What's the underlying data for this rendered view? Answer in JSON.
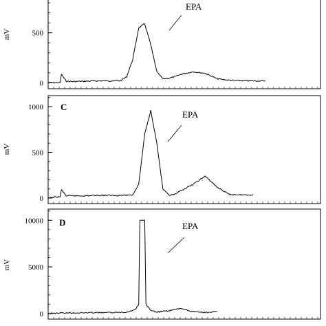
{
  "chart_data": [
    {
      "type": "line",
      "panel_label": "",
      "ylabel": "mV",
      "yticks": [
        0,
        500
      ],
      "ylim": [
        -60,
        870
      ],
      "x": [
        0,
        0.5,
        1.0,
        1.1,
        1.5,
        2,
        3,
        4,
        6,
        6.5,
        7,
        7.5,
        8,
        8.5,
        9,
        9.5,
        10,
        10.5,
        11,
        12,
        13,
        14,
        15,
        16,
        17,
        18
      ],
      "values": [
        0,
        0,
        2,
        85,
        15,
        12,
        15,
        18,
        20,
        60,
        230,
        550,
        590,
        380,
        110,
        40,
        45,
        60,
        85,
        110,
        95,
        40,
        25,
        20,
        18,
        18
      ],
      "annotation": "EPA"
    },
    {
      "type": "line",
      "panel_label": "C",
      "ylabel": "mV",
      "yticks": [
        0,
        500,
        1000
      ],
      "ylim": [
        -60,
        1120
      ],
      "x": [
        0,
        0.5,
        1.0,
        1.1,
        1.5,
        2,
        3,
        4,
        5,
        6,
        7,
        7.5,
        8,
        8.5,
        9,
        9.5,
        10,
        10.5,
        11,
        12,
        13,
        14,
        15,
        16,
        17
      ],
      "values": [
        0,
        10,
        15,
        90,
        25,
        25,
        25,
        30,
        30,
        30,
        35,
        150,
        700,
        960,
        600,
        100,
        30,
        40,
        80,
        150,
        240,
        120,
        40,
        35,
        35
      ],
      "annotation": "EPA"
    },
    {
      "type": "line",
      "panel_label": "D",
      "ylabel": "mV",
      "yticks": [
        0,
        5000,
        10000
      ],
      "ylim": [
        -600,
        11200
      ],
      "x": [
        0,
        1,
        3,
        5,
        6.5,
        7.2,
        7.5,
        7.6,
        8.0,
        8.1,
        8.5,
        9,
        10,
        11,
        12,
        13,
        14
      ],
      "values": [
        0,
        60,
        80,
        100,
        150,
        400,
        1000,
        10000,
        10000,
        1000,
        300,
        150,
        300,
        550,
        200,
        100,
        200
      ],
      "annotation": "EPA"
    }
  ]
}
